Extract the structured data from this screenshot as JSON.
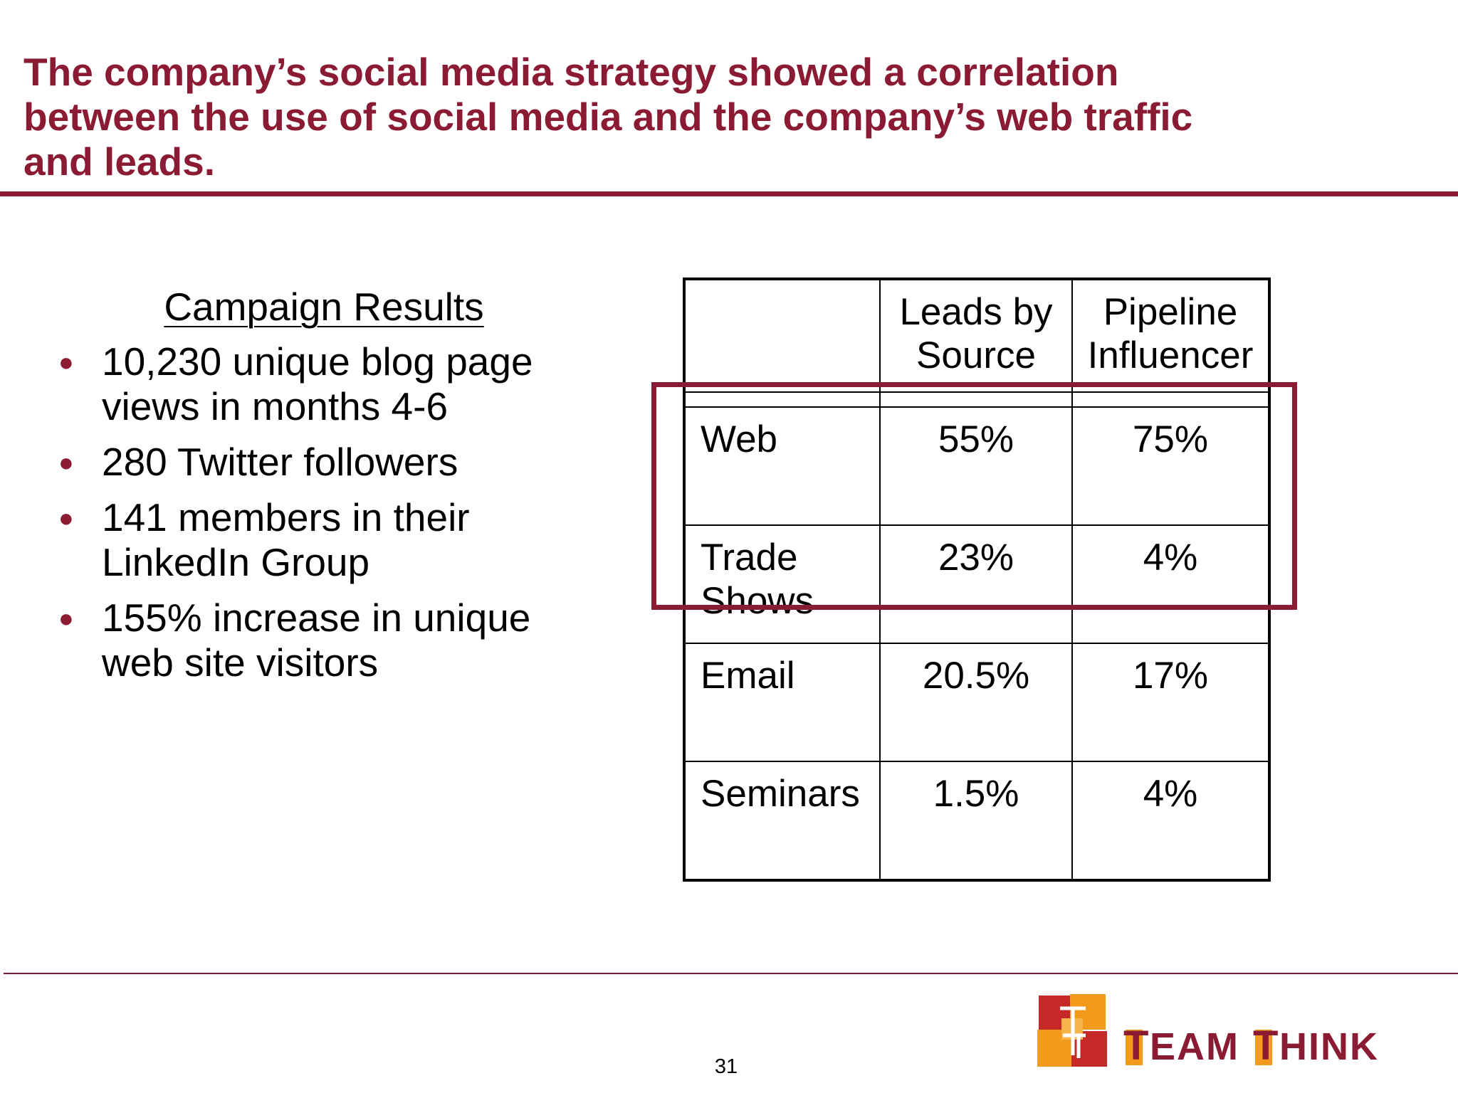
{
  "slide": {
    "title": "The company’s social media strategy showed a correlation between the use of social media and the company’s web traffic and leads.",
    "page_number": "31"
  },
  "campaign": {
    "heading": "Campaign Results",
    "bullets": [
      "10,230 unique blog page views in months 4-6",
      "280 Twitter followers",
      "141 members in their LinkedIn Group",
      "155% increase in unique web site visitors"
    ]
  },
  "table": {
    "headers": [
      "",
      "Leads by Source",
      "Pipeline Influencer"
    ],
    "rows": [
      {
        "source": "Web",
        "leads_by_source": "55%",
        "pipeline_influencer": "75%"
      },
      {
        "source": "Trade Shows",
        "leads_by_source": "23%",
        "pipeline_influencer": "4%"
      },
      {
        "source": "Email",
        "leads_by_source": "20.5%",
        "pipeline_influencer": "17%"
      },
      {
        "source": "Seminars",
        "leads_by_source": "1.5%",
        "pipeline_influencer": "4%"
      }
    ],
    "highlighted_rows": [
      "Web",
      "Trade Shows"
    ]
  },
  "logo": {
    "text_team": "EAM",
    "text_think": "HINK",
    "initial_team": "T",
    "initial_think": "T",
    "icon": "team-think-logo-mark"
  },
  "colors": {
    "accent": "#8b1a33",
    "logo_orange": "#f29a1c",
    "logo_red": "#c62828",
    "logo_text": "#8b1a33"
  }
}
